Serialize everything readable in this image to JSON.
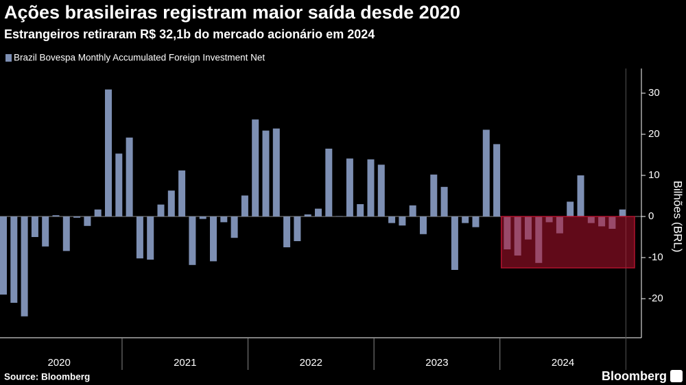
{
  "chart_data": {
    "type": "bar",
    "title": "Ações brasileiras registram maior saída desde 2020",
    "subtitle": "Estrangeiros retiraram R$ 32,1b do mercado acionário em 2024",
    "ylabel": "Bilhões (BRL)",
    "source": "Source: Bloomberg",
    "brand": "Bloomberg",
    "year_labels": [
      "2020",
      "2021",
      "2022",
      "2023",
      "2024"
    ],
    "series": [
      {
        "name": "Brazil Bovespa Monthly Accumulated Foreign Investment Net",
        "color": "#7d8fb3",
        "values": [
          -19,
          -21,
          -24.3,
          -5,
          -7.3,
          0.3,
          -8.4,
          -0.3,
          -2.3,
          1.7,
          30.9,
          15.3,
          19.2,
          -10.2,
          -10.5,
          2.9,
          6.3,
          11.2,
          -11.8,
          -0.6,
          -10.9,
          -1.4,
          -5.2,
          5.1,
          23.6,
          20.9,
          21.4,
          -7.5,
          -6,
          0.5,
          1.9,
          16.5,
          0.1,
          14.1,
          3,
          13.9,
          12.6,
          -1.6,
          -2.2,
          2.7,
          -4.3,
          10.2,
          7.2,
          -13,
          -1.6,
          -2.6,
          21.1,
          17.6,
          -8,
          -9.5,
          -5.6,
          -11.3,
          -1.4,
          -4.1,
          3.6,
          10,
          -1.6,
          -2.4,
          -3,
          1.7
        ]
      }
    ],
    "highlight_ylim": [
      -12.5,
      0
    ],
    "highlight_color": "#b0132e",
    "ylim": [
      -29.5,
      36
    ],
    "yticks": [
      -20,
      -10,
      0,
      10,
      20,
      30
    ]
  }
}
